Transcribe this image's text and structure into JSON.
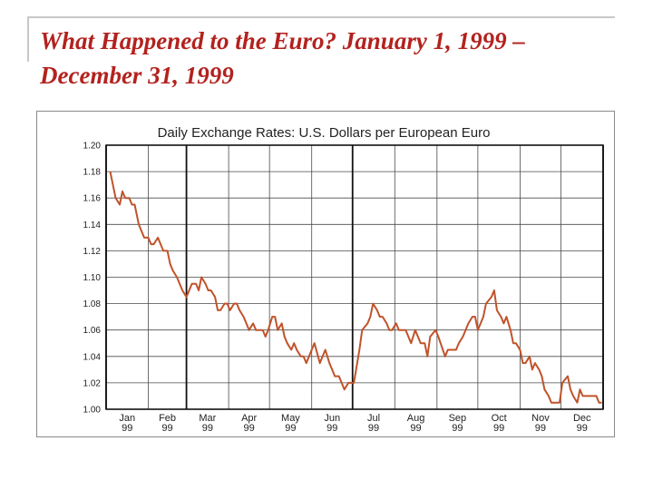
{
  "slide": {
    "title_line1": "What Happened to the Euro?  January 1, 1999 –",
    "title_line2": "December 31, 1999"
  },
  "chart_data": {
    "type": "line",
    "title": "Daily Exchange Rates: U.S. Dollars per European Euro",
    "xlabel": "",
    "ylabel": "",
    "ylim": [
      1.0,
      1.2
    ],
    "yticks": [
      "1.00",
      "1.02",
      "1.04",
      "1.06",
      "1.08",
      "1.10",
      "1.12",
      "1.14",
      "1.16",
      "1.18",
      "1.20"
    ],
    "months": [
      {
        "name": "Jan",
        "year": "99"
      },
      {
        "name": "Feb",
        "year": "99"
      },
      {
        "name": "Mar",
        "year": "99"
      },
      {
        "name": "Apr",
        "year": "99"
      },
      {
        "name": "May",
        "year": "99"
      },
      {
        "name": "Jun",
        "year": "99"
      },
      {
        "name": "Jul",
        "year": "99"
      },
      {
        "name": "Aug",
        "year": "99"
      },
      {
        "name": "Sep",
        "year": "99"
      },
      {
        "name": "Oct",
        "year": "99"
      },
      {
        "name": "Nov",
        "year": "99"
      },
      {
        "name": "Dec",
        "year": "99"
      }
    ],
    "grid": true,
    "line_color": "#c0532a",
    "series": [
      {
        "name": "",
        "x": [
          "1999-01-04",
          "1999-01-06",
          "1999-01-08",
          "1999-01-11",
          "1999-01-13",
          "1999-01-15",
          "1999-01-18",
          "1999-01-20",
          "1999-01-22",
          "1999-01-25",
          "1999-01-27",
          "1999-01-29",
          "1999-02-01",
          "1999-02-03",
          "1999-02-05",
          "1999-02-08",
          "1999-02-10",
          "1999-02-12",
          "1999-02-15",
          "1999-02-17",
          "1999-02-19",
          "1999-02-22",
          "1999-02-24",
          "1999-02-26",
          "1999-03-01",
          "1999-03-03",
          "1999-03-05",
          "1999-03-08",
          "1999-03-10",
          "1999-03-12",
          "1999-03-15",
          "1999-03-17",
          "1999-03-19",
          "1999-03-22",
          "1999-03-24",
          "1999-03-26",
          "1999-03-29",
          "1999-03-31",
          "1999-04-02",
          "1999-04-05",
          "1999-04-07",
          "1999-04-09",
          "1999-04-12",
          "1999-04-14",
          "1999-04-16",
          "1999-04-19",
          "1999-04-21",
          "1999-04-23",
          "1999-04-26",
          "1999-04-28",
          "1999-04-30",
          "1999-05-03",
          "1999-05-05",
          "1999-05-07",
          "1999-05-10",
          "1999-05-12",
          "1999-05-14",
          "1999-05-17",
          "1999-05-19",
          "1999-05-21",
          "1999-05-24",
          "1999-05-26",
          "1999-05-28",
          "1999-06-01",
          "1999-06-03",
          "1999-06-07",
          "1999-06-09",
          "1999-06-11",
          "1999-06-14",
          "1999-06-16",
          "1999-06-18",
          "1999-06-21",
          "1999-06-23",
          "1999-06-25",
          "1999-06-28",
          "1999-06-30",
          "1999-07-02",
          "1999-07-06",
          "1999-07-08",
          "1999-07-12",
          "1999-07-14",
          "1999-07-16",
          "1999-07-19",
          "1999-07-21",
          "1999-07-23",
          "1999-07-26",
          "1999-07-28",
          "1999-07-30",
          "1999-08-02",
          "1999-08-04",
          "1999-08-06",
          "1999-08-09",
          "1999-08-11",
          "1999-08-13",
          "1999-08-16",
          "1999-08-18",
          "1999-08-20",
          "1999-08-23",
          "1999-08-25",
          "1999-08-27",
          "1999-08-31",
          "1999-09-02",
          "1999-09-07",
          "1999-09-09",
          "1999-09-13",
          "1999-09-15",
          "1999-09-17",
          "1999-09-20",
          "1999-09-22",
          "1999-09-24",
          "1999-09-27",
          "1999-09-29",
          "1999-10-01",
          "1999-10-05",
          "1999-10-07",
          "1999-10-11",
          "1999-10-13",
          "1999-10-15",
          "1999-10-18",
          "1999-10-20",
          "1999-10-22",
          "1999-10-25",
          "1999-10-27",
          "1999-10-29",
          "1999-11-01",
          "1999-11-03",
          "1999-11-05",
          "1999-11-08",
          "1999-11-10",
          "1999-11-12",
          "1999-11-15",
          "1999-11-17",
          "1999-11-19",
          "1999-11-22",
          "1999-11-24",
          "1999-11-26",
          "1999-11-30",
          "1999-12-02",
          "1999-12-06",
          "1999-12-08",
          "1999-12-10",
          "1999-12-13",
          "1999-12-15",
          "1999-12-17",
          "1999-12-20",
          "1999-12-22",
          "1999-12-27",
          "1999-12-29",
          "1999-12-31"
        ],
        "values": [
          1.18,
          1.17,
          1.16,
          1.155,
          1.165,
          1.16,
          1.16,
          1.155,
          1.155,
          1.14,
          1.135,
          1.13,
          1.13,
          1.125,
          1.125,
          1.13,
          1.125,
          1.12,
          1.12,
          1.11,
          1.105,
          1.1,
          1.095,
          1.09,
          1.085,
          1.09,
          1.095,
          1.095,
          1.09,
          1.1,
          1.095,
          1.09,
          1.09,
          1.085,
          1.075,
          1.075,
          1.08,
          1.08,
          1.075,
          1.08,
          1.08,
          1.075,
          1.07,
          1.065,
          1.06,
          1.065,
          1.06,
          1.06,
          1.06,
          1.055,
          1.06,
          1.07,
          1.07,
          1.06,
          1.065,
          1.055,
          1.05,
          1.045,
          1.05,
          1.045,
          1.04,
          1.04,
          1.035,
          1.045,
          1.05,
          1.035,
          1.04,
          1.045,
          1.035,
          1.03,
          1.025,
          1.025,
          1.02,
          1.015,
          1.02,
          1.02,
          1.02,
          1.045,
          1.06,
          1.065,
          1.07,
          1.08,
          1.075,
          1.07,
          1.07,
          1.065,
          1.06,
          1.06,
          1.065,
          1.06,
          1.06,
          1.06,
          1.055,
          1.05,
          1.06,
          1.055,
          1.05,
          1.05,
          1.04,
          1.055,
          1.06,
          1.055,
          1.04,
          1.045,
          1.045,
          1.045,
          1.05,
          1.055,
          1.06,
          1.065,
          1.07,
          1.07,
          1.06,
          1.07,
          1.08,
          1.085,
          1.09,
          1.075,
          1.07,
          1.065,
          1.07,
          1.06,
          1.05,
          1.05,
          1.045,
          1.035,
          1.035,
          1.04,
          1.03,
          1.035,
          1.03,
          1.025,
          1.015,
          1.01,
          1.005,
          1.005,
          1.005,
          1.02,
          1.025,
          1.015,
          1.01,
          1.005,
          1.015,
          1.01,
          1.01,
          1.01,
          1.01,
          1.005,
          1.005
        ]
      }
    ]
  }
}
